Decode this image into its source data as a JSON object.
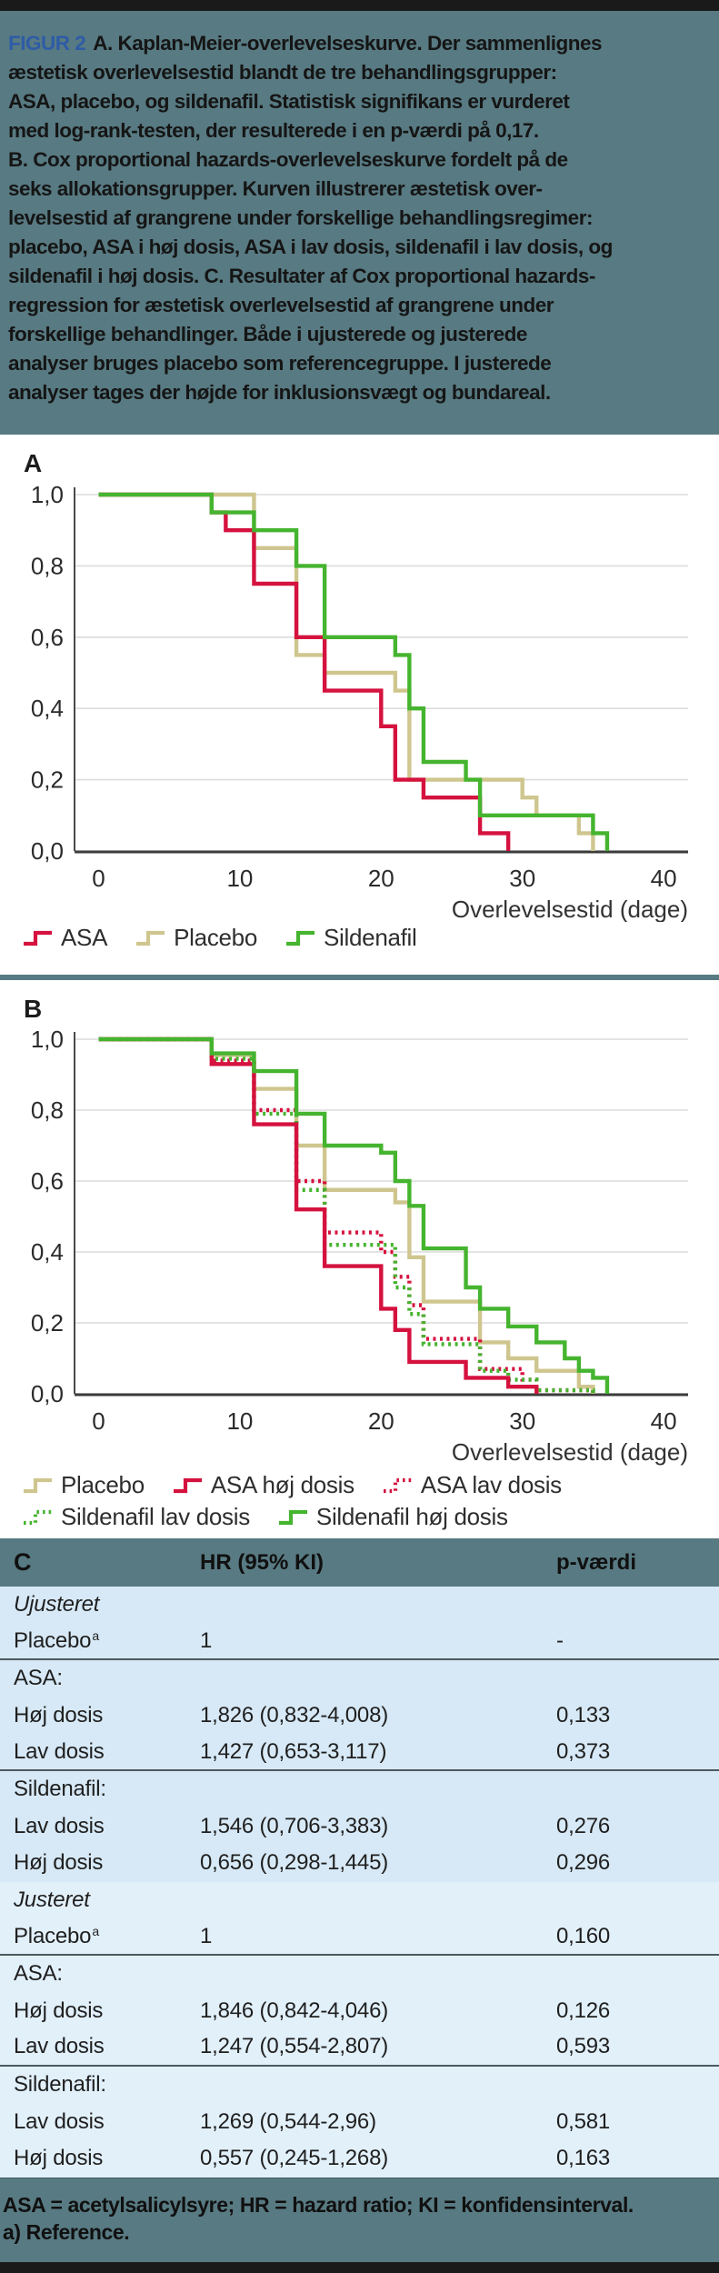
{
  "colors": {
    "red": "#D5123F",
    "tan": "#CFC68F",
    "green": "#45B42F",
    "teal_background": "#587A82",
    "table_row_blue": "#D7E9F6",
    "table_row_blue_light": "#E2F0FA",
    "figur_label_blue": "#2E5CA6",
    "gridline": "#DCDCDC",
    "axis": "#3C3C3C"
  },
  "caption": {
    "figur_label": "FIGUR 2",
    "lines": [
      "A. Kaplan-Meier-overlevelseskurve. Der sammenlignes",
      "æstetisk overlevelsestid blandt de tre behandlingsgrupper:",
      "ASA, placebo, og sildenafil. Statistisk signifikans er vurderet",
      "med log-rank-testen, der resulterede i en p-værdi på 0,17.",
      "B. Cox proportional hazards-overlevelseskurve fordelt på de",
      "seks allokationsgrupper. Kurven illustrerer æstetisk over-",
      "levelsestid af grangrene under forskellige behandlingsregimer:",
      "placebo, ASA i høj dosis, ASA i lav dosis, sildenafil i lav dosis, og",
      "sildenafil i høj dosis. C. Resultater af Cox proportional hazards-",
      "regression for æstetisk overlevelsestid af grangrene under",
      "forskellige behandlinger. Både i ujusterede og justerede",
      "analyser bruges placebo som referencegruppe. I justerede",
      "analyser tages der højde for inklusionsvægt og bundareal."
    ]
  },
  "chart_data": [
    {
      "type": "line",
      "panel_label": "A",
      "title": "Kaplan-Meier-overlevelseskurve",
      "xlabel": "Overlevelsestid (dage)",
      "ylabel": "",
      "xlim": [
        0,
        42
      ],
      "ylim": [
        0.0,
        1.0
      ],
      "grid": true,
      "xticks": [
        {
          "label": "0",
          "value": 0
        },
        {
          "label": "10",
          "value": 10
        },
        {
          "label": "20",
          "value": 20
        },
        {
          "label": "30",
          "value": 30
        },
        {
          "label": "40",
          "value": 40
        }
      ],
      "yticks": [
        {
          "label": "1,0",
          "value": 1.0
        },
        {
          "label": "0,8",
          "value": 0.8
        },
        {
          "label": "0,6",
          "value": 0.6
        },
        {
          "label": "0,4",
          "value": 0.4
        },
        {
          "label": "0,2",
          "value": 0.2
        },
        {
          "label": "0,0",
          "value": 0.0
        }
      ],
      "series": [
        {
          "name": "Placebo",
          "color": "tan",
          "style": "solid",
          "points": [
            [
              0,
              1.0
            ],
            [
              11,
              0.85
            ],
            [
              14,
              0.55
            ],
            [
              16,
              0.5
            ],
            [
              21,
              0.45
            ],
            [
              22,
              0.2
            ],
            [
              30,
              0.15
            ],
            [
              31,
              0.1
            ],
            [
              34,
              0.05
            ],
            [
              35,
              0.0
            ]
          ]
        },
        {
          "name": "ASA",
          "color": "red",
          "style": "solid",
          "points": [
            [
              0,
              1.0
            ],
            [
              8,
              0.95
            ],
            [
              9,
              0.9
            ],
            [
              11,
              0.75
            ],
            [
              14,
              0.6
            ],
            [
              16,
              0.45
            ],
            [
              20,
              0.35
            ],
            [
              21,
              0.2
            ],
            [
              23,
              0.15
            ],
            [
              27,
              0.05
            ],
            [
              29,
              0.0
            ]
          ]
        },
        {
          "name": "Sildenafil",
          "color": "green",
          "style": "solid",
          "points": [
            [
              0,
              1.0
            ],
            [
              8,
              0.95
            ],
            [
              11,
              0.9
            ],
            [
              14,
              0.8
            ],
            [
              16,
              0.6
            ],
            [
              21,
              0.55
            ],
            [
              22,
              0.4
            ],
            [
              23,
              0.25
            ],
            [
              26,
              0.2
            ],
            [
              27,
              0.1
            ],
            [
              35,
              0.05
            ],
            [
              36,
              0.0
            ]
          ]
        }
      ],
      "legend_rows": [
        [
          {
            "label": "ASA",
            "color": "red",
            "style": "solid"
          },
          {
            "label": "Placebo",
            "color": "tan",
            "style": "solid"
          },
          {
            "label": "Sildenafil",
            "color": "green",
            "style": "solid"
          }
        ]
      ],
      "legend_position": "below"
    },
    {
      "type": "line",
      "panel_label": "B",
      "title": "Cox proportional hazards-overlevelseskurve",
      "xlabel": "Overlevelsestid (dage)",
      "ylabel": "",
      "xlim": [
        0,
        42
      ],
      "ylim": [
        0.0,
        1.0
      ],
      "grid": true,
      "xticks": [
        {
          "label": "0",
          "value": 0
        },
        {
          "label": "10",
          "value": 10
        },
        {
          "label": "20",
          "value": 20
        },
        {
          "label": "30",
          "value": 30
        },
        {
          "label": "40",
          "value": 40
        }
      ],
      "yticks": [
        {
          "label": "1,0",
          "value": 1.0
        },
        {
          "label": "0,8",
          "value": 0.8
        },
        {
          "label": "0,6",
          "value": 0.6
        },
        {
          "label": "0,4",
          "value": 0.4
        },
        {
          "label": "0,2",
          "value": 0.2
        },
        {
          "label": "0,0",
          "value": 0.0
        }
      ],
      "series": [
        {
          "name": "Placebo",
          "color": "tan",
          "style": "solid",
          "points": [
            [
              0,
              1.0
            ],
            [
              8,
              0.955
            ],
            [
              11,
              0.86
            ],
            [
              14,
              0.7
            ],
            [
              16,
              0.575
            ],
            [
              21,
              0.54
            ],
            [
              22,
              0.385
            ],
            [
              23,
              0.26
            ],
            [
              27,
              0.145
            ],
            [
              29,
              0.1
            ],
            [
              31,
              0.065
            ],
            [
              34,
              0.02
            ],
            [
              35,
              0.0
            ]
          ]
        },
        {
          "name": "ASA lav dosis",
          "color": "red",
          "style": "dotted",
          "points": [
            [
              0,
              1.0
            ],
            [
              8,
              0.94
            ],
            [
              11,
              0.8
            ],
            [
              14,
              0.6
            ],
            [
              16,
              0.455
            ],
            [
              20,
              0.4
            ],
            [
              21,
              0.33
            ],
            [
              22,
              0.25
            ],
            [
              23,
              0.155
            ],
            [
              27,
              0.07
            ],
            [
              30,
              0.04
            ],
            [
              31,
              0.01
            ],
            [
              35,
              0.0
            ]
          ]
        },
        {
          "name": "Sildenafil lav dosis",
          "color": "green",
          "style": "dotted",
          "points": [
            [
              0,
              1.0
            ],
            [
              8,
              0.945
            ],
            [
              11,
              0.79
            ],
            [
              14,
              0.575
            ],
            [
              16,
              0.42
            ],
            [
              21,
              0.3
            ],
            [
              22,
              0.225
            ],
            [
              23,
              0.14
            ],
            [
              27,
              0.065
            ],
            [
              29,
              0.04
            ],
            [
              31,
              0.01
            ],
            [
              35,
              0.0
            ]
          ]
        },
        {
          "name": "ASA høj dosis",
          "color": "red",
          "style": "solid",
          "points": [
            [
              0,
              1.0
            ],
            [
              8,
              0.93
            ],
            [
              11,
              0.76
            ],
            [
              14,
              0.52
            ],
            [
              16,
              0.36
            ],
            [
              20,
              0.24
            ],
            [
              21,
              0.18
            ],
            [
              22,
              0.09
            ],
            [
              26,
              0.045
            ],
            [
              29,
              0.02
            ],
            [
              31,
              0.0
            ]
          ]
        },
        {
          "name": "Sildenafil høj dosis",
          "color": "green",
          "style": "solid",
          "points": [
            [
              0,
              1.0
            ],
            [
              8,
              0.96
            ],
            [
              11,
              0.91
            ],
            [
              14,
              0.79
            ],
            [
              16,
              0.7
            ],
            [
              20,
              0.68
            ],
            [
              21,
              0.6
            ],
            [
              22,
              0.53
            ],
            [
              23,
              0.41
            ],
            [
              26,
              0.3
            ],
            [
              27,
              0.24
            ],
            [
              29,
              0.19
            ],
            [
              31,
              0.145
            ],
            [
              33,
              0.1
            ],
            [
              34,
              0.065
            ],
            [
              35,
              0.045
            ],
            [
              36,
              0.0
            ]
          ]
        }
      ],
      "legend_rows": [
        [
          {
            "label": "Placebo",
            "color": "tan",
            "style": "solid"
          },
          {
            "label": "ASA høj dosis",
            "color": "red",
            "style": "solid"
          },
          {
            "label": "ASA lav dosis",
            "color": "red",
            "style": "dotted"
          }
        ],
        [
          {
            "label": "Sildenafil lav dosis",
            "color": "green",
            "style": "dotted"
          },
          {
            "label": "Sildenafil høj dosis",
            "color": "green",
            "style": "solid"
          }
        ]
      ],
      "legend_position": "below"
    }
  ],
  "table": {
    "panel_label": "C",
    "columns": [
      "HR (95% KI)",
      "p-værdi"
    ],
    "rows": [
      {
        "label": "Ujusteret",
        "italic": true,
        "hr": "",
        "p": "",
        "section": 1
      },
      {
        "label": "Placebo",
        "sup": "a",
        "hr": "1",
        "p": "-",
        "rule_after": true,
        "section": 1
      },
      {
        "label": "ASA:",
        "hr": "",
        "p": "",
        "section": 1
      },
      {
        "label": "Høj dosis",
        "hr": "1,826 (0,832-4,008)",
        "p": "0,133",
        "section": 1
      },
      {
        "label": "Lav dosis",
        "hr": "1,427 (0,653-3,117)",
        "p": "0,373",
        "rule_after": true,
        "section": 1
      },
      {
        "label": "Sildenafil:",
        "hr": "",
        "p": "",
        "section": 1
      },
      {
        "label": "Lav dosis",
        "hr": "1,546 (0,706-3,383)",
        "p": "0,276",
        "section": 1
      },
      {
        "label": "Høj dosis",
        "hr": "0,656 (0,298-1,445)",
        "p": "0,296",
        "section": 1
      },
      {
        "label": "Justeret",
        "italic": true,
        "hr": "",
        "p": "",
        "section": 2
      },
      {
        "label": "Placebo",
        "sup": "a",
        "hr": "1",
        "p": "0,160",
        "rule_after": true,
        "section": 2
      },
      {
        "label": "ASA:",
        "hr": "",
        "p": "",
        "section": 2
      },
      {
        "label": "Høj dosis",
        "hr": "1,846 (0,842-4,046)",
        "p": "0,126",
        "section": 2
      },
      {
        "label": "Lav dosis",
        "hr": "1,247 (0,554-2,807)",
        "p": "0,593",
        "rule_after": true,
        "section": 2
      },
      {
        "label": "Sildenafil:",
        "hr": "",
        "p": "",
        "section": 2
      },
      {
        "label": "Lav dosis",
        "hr": "1,269 (0,544-2,96)",
        "p": "0,581",
        "section": 2
      },
      {
        "label": "Høj dosis",
        "hr": "0,557 (0,245-1,268)",
        "p": "0,163",
        "section": 2
      }
    ]
  },
  "footnote": {
    "lines": [
      "ASA = acetylsalicylsyre; HR = hazard ratio; KI = konfidensinterval.",
      "a) Reference."
    ]
  }
}
